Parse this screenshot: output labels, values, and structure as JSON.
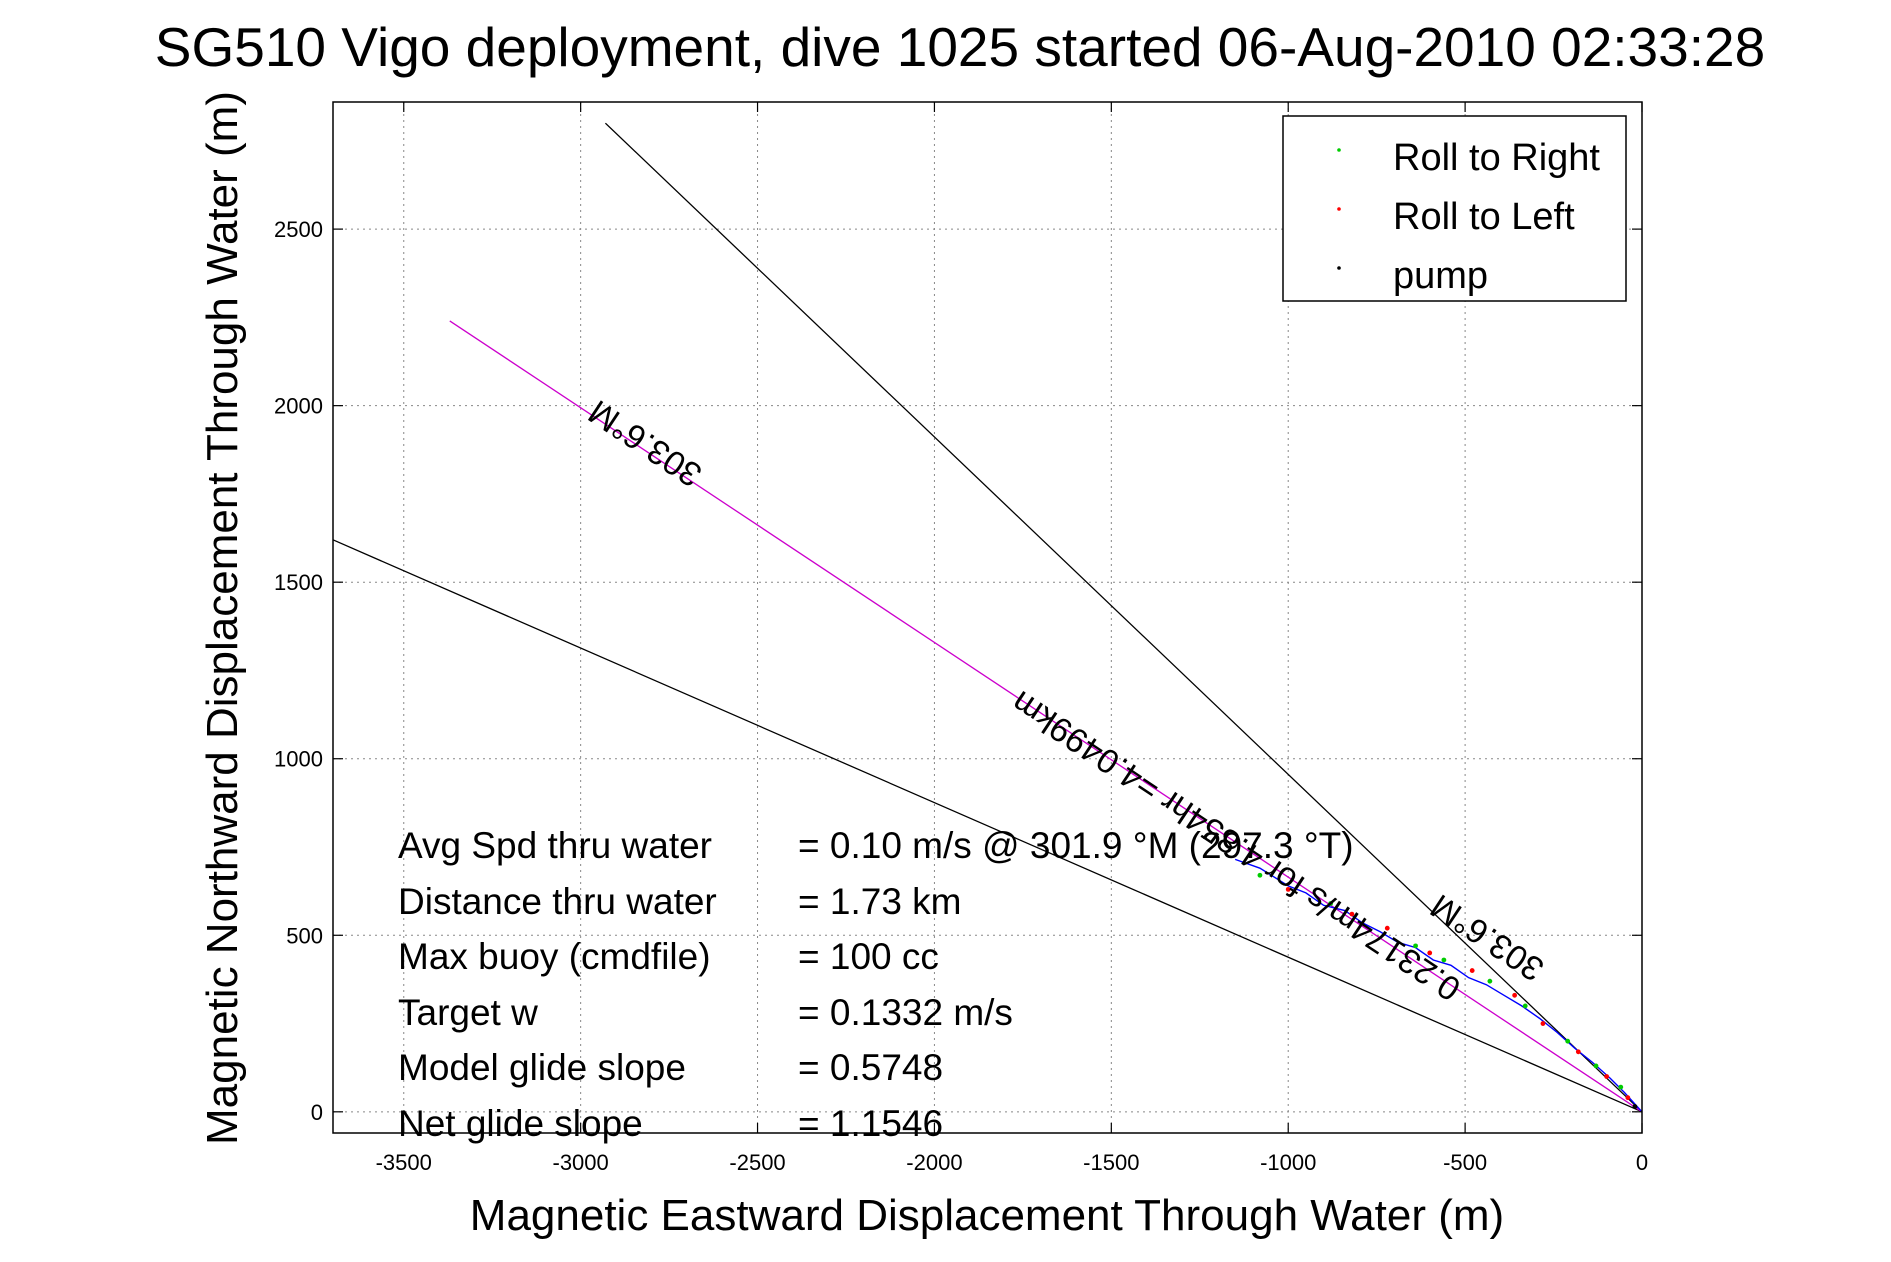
{
  "chart_data": {
    "type": "line",
    "title": "SG510 Vigo deployment, dive 1025 started 06-Aug-2010 02:33:28",
    "xlabel": "Magnetic Eastward Displacement Through Water (m)",
    "ylabel": "Magnetic Northward Displacement Through Water (m)",
    "xlim": [
      -3700,
      0
    ],
    "ylim": [
      -60,
      2860
    ],
    "xticks": [
      -3500,
      -3000,
      -2500,
      -2000,
      -1500,
      -1000,
      -500,
      0
    ],
    "yticks": [
      0,
      500,
      1000,
      1500,
      2000,
      2500
    ],
    "grid": true,
    "legend_position": "top-right",
    "legend": [
      {
        "label": "Roll to Right",
        "color": "#00cc00"
      },
      {
        "label": "Roll to Left",
        "color": "#ff0000"
      },
      {
        "label": "pump",
        "color": "#000000"
      }
    ],
    "series": [
      {
        "name": "Roll to Right",
        "color": "#00cc00",
        "marker": "dot",
        "x": [
          -1080,
          -880,
          -640,
          -560,
          -430,
          -330,
          -210,
          -130,
          -60
        ],
        "y": [
          670,
          590,
          470,
          430,
          370,
          300,
          200,
          130,
          70
        ]
      },
      {
        "name": "Roll to Left",
        "color": "#ff0000",
        "marker": "dot",
        "x": [
          -1000,
          -820,
          -720,
          -600,
          -480,
          -360,
          -280,
          -180,
          -100,
          -40
        ],
        "y": [
          630,
          560,
          520,
          450,
          400,
          330,
          250,
          170,
          100,
          40
        ]
      },
      {
        "name": "pump",
        "color": "#000000",
        "marker": "dot",
        "x": [
          -20
        ],
        "y": [
          15
        ]
      }
    ],
    "reference_lines": [
      {
        "color": "#000000",
        "x": [
          -2930,
          0
        ],
        "y": [
          2800,
          0
        ]
      },
      {
        "color": "#000000",
        "x": [
          -3700,
          0
        ],
        "y": [
          1620,
          0
        ]
      },
      {
        "color": "#cc00cc",
        "x": [
          -3370,
          0
        ],
        "y": [
          2240,
          0
        ]
      }
    ],
    "trajectory": {
      "color": "#0000ff",
      "x": [
        -1150,
        -1080,
        -1000,
        -950,
        -900,
        -840,
        -790,
        -740,
        -690,
        -640,
        -590,
        -540,
        -490,
        -440,
        -390,
        -340,
        -290,
        -240,
        -190,
        -140,
        -90,
        -50,
        0
      ],
      "y": [
        715,
        690,
        640,
        620,
        585,
        570,
        535,
        510,
        480,
        465,
        430,
        415,
        380,
        360,
        330,
        300,
        265,
        225,
        180,
        140,
        95,
        55,
        0
      ]
    },
    "annotations": [
      {
        "text": "303.6°M",
        "x": -2800,
        "y": 1920,
        "rotation": 213.6
      },
      {
        "text": "0.23174m/s for 4.854hr =4.0499km",
        "x": -1130,
        "y": 780,
        "rotation": 213.6
      },
      {
        "text": "303.6°M",
        "x": -420,
        "y": 520,
        "rotation": 213.6
      }
    ]
  },
  "stats": [
    {
      "label": "Avg Spd thru water",
      "value": "=  0.10 m/s @ 301.9 °M (297.3 °T)"
    },
    {
      "label": "Distance thru water",
      "value": "=  1.73 km"
    },
    {
      "label": "Max buoy (cmdfile)",
      "value": "= 100 cc"
    },
    {
      "label": "Target w",
      "value": "= 0.1332 m/s"
    },
    {
      "label": "Model glide slope",
      "value": "= 0.5748"
    },
    {
      "label": "Net glide slope",
      "value": "= 1.1546"
    }
  ]
}
